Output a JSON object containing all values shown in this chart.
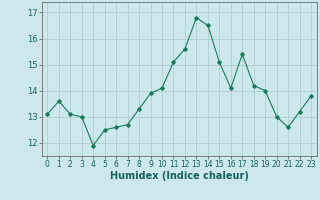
{
  "x": [
    0,
    1,
    2,
    3,
    4,
    5,
    6,
    7,
    8,
    9,
    10,
    11,
    12,
    13,
    14,
    15,
    16,
    17,
    18,
    19,
    20,
    21,
    22,
    23
  ],
  "y": [
    13.1,
    13.6,
    13.1,
    13.0,
    11.9,
    12.5,
    12.6,
    12.7,
    13.3,
    13.9,
    14.1,
    15.1,
    15.6,
    16.8,
    16.5,
    15.1,
    14.1,
    15.4,
    14.2,
    14.0,
    13.0,
    12.6,
    13.2,
    13.8
  ],
  "line_color": "#1a7a5e",
  "marker": "D",
  "marker_size": 1.8,
  "bg_color": "#cce8ed",
  "grid_color": "#aac8cc",
  "xlabel": "Humidex (Indice chaleur)",
  "xlabel_fontsize": 7,
  "xtick_fontsize": 5.5,
  "ytick_fontsize": 6,
  "ylim": [
    11.5,
    17.4
  ],
  "xlim": [
    -0.5,
    23.5
  ],
  "yticks": [
    12,
    13,
    14,
    15,
    16,
    17
  ],
  "xticks": [
    0,
    1,
    2,
    3,
    4,
    5,
    6,
    7,
    8,
    9,
    10,
    11,
    12,
    13,
    14,
    15,
    16,
    17,
    18,
    19,
    20,
    21,
    22,
    23
  ],
  "linewidth": 0.8
}
